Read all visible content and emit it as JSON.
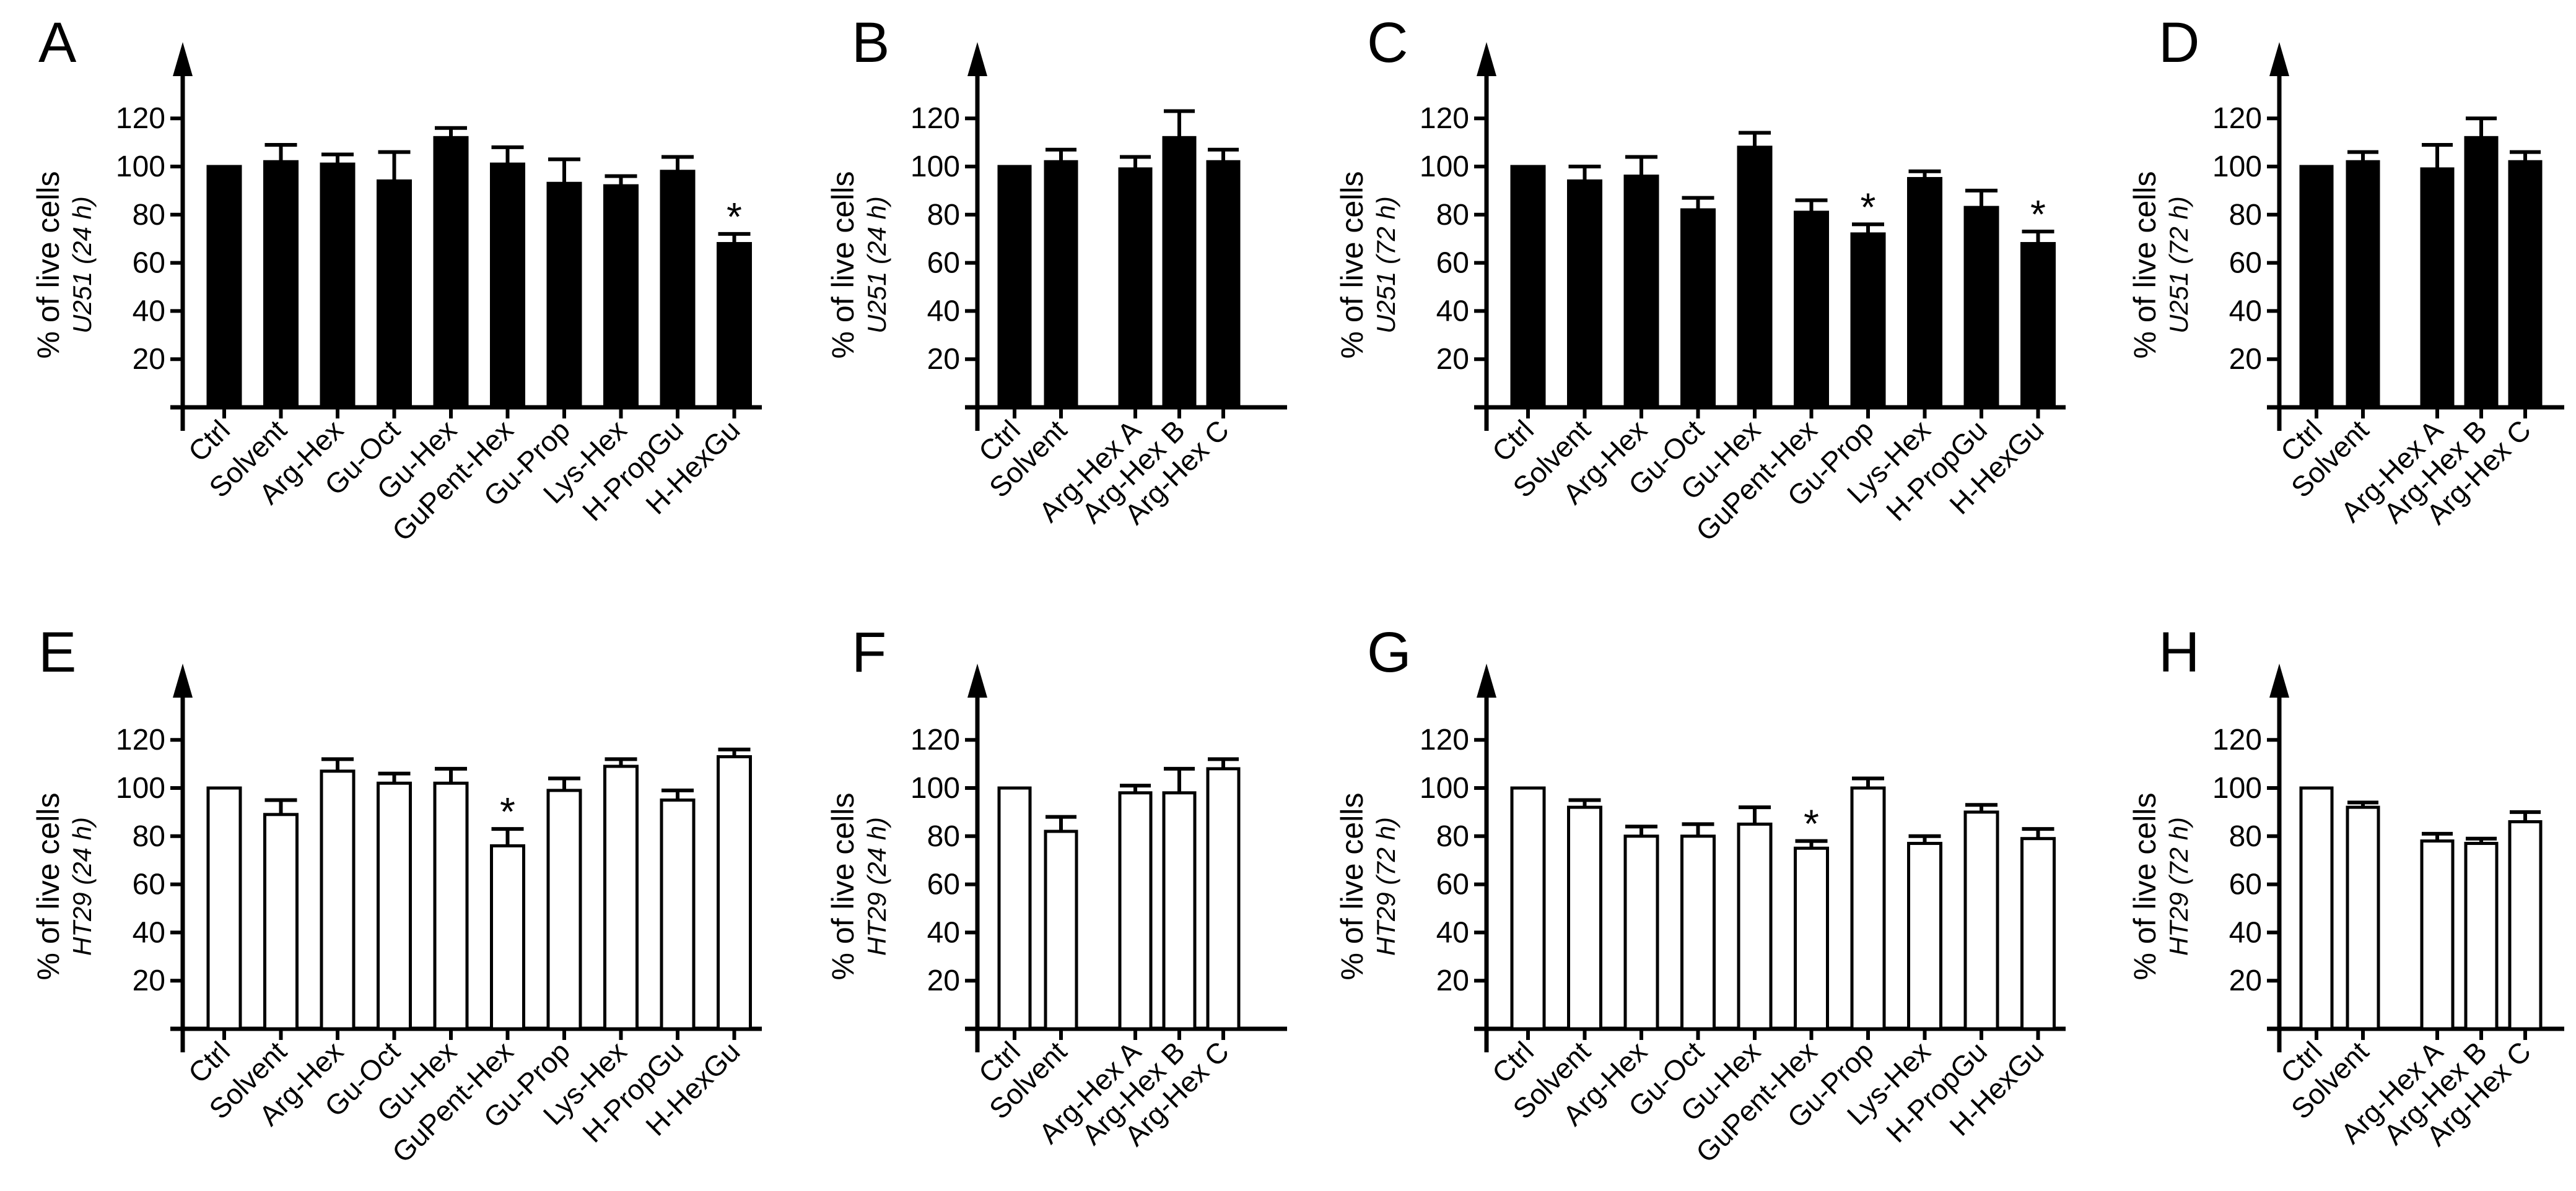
{
  "figure": {
    "ylabel": "% of live cells"
  },
  "chart_data": [
    {
      "panel": "A",
      "type": "bar",
      "cell_line": "U251",
      "time": "(24 h)",
      "fill": "#000000",
      "categories": [
        "Ctrl",
        "Solvent",
        "Arg-Hex",
        "Gu-Oct",
        "Gu-Hex",
        "GuPent-Hex",
        "Gu-Prop",
        "Lys-Hex",
        "H-PropGu",
        "H-HexGu"
      ],
      "values": [
        100,
        102,
        101,
        94,
        112,
        101,
        93,
        92,
        98,
        68
      ],
      "errors": [
        0,
        7,
        4,
        12,
        4,
        7,
        10,
        4,
        6,
        4
      ],
      "significant": [
        false,
        false,
        false,
        false,
        false,
        false,
        false,
        false,
        false,
        true
      ],
      "yticks": [
        20,
        40,
        60,
        80,
        100,
        120
      ],
      "ylim": [
        0,
        140
      ]
    },
    {
      "panel": "B",
      "type": "bar",
      "cell_line": "U251",
      "time": "(24 h)",
      "fill": "#000000",
      "categories": [
        "Ctrl",
        "Solvent",
        "Arg-Hex A",
        "Arg-Hex B",
        "Arg-Hex C"
      ],
      "values": [
        100,
        102,
        99,
        112,
        102
      ],
      "errors": [
        0,
        5,
        5,
        11,
        5
      ],
      "significant": [
        false,
        false,
        false,
        false,
        false
      ],
      "yticks": [
        20,
        40,
        60,
        80,
        100,
        120
      ],
      "ylim": [
        0,
        140
      ]
    },
    {
      "panel": "C",
      "type": "bar",
      "cell_line": "U251",
      "time": "(72 h)",
      "fill": "#000000",
      "categories": [
        "Ctrl",
        "Solvent",
        "Arg-Hex",
        "Gu-Oct",
        "Gu-Hex",
        "GuPent-Hex",
        "Gu-Prop",
        "Lys-Hex",
        "H-PropGu",
        "H-HexGu"
      ],
      "values": [
        100,
        94,
        96,
        82,
        108,
        81,
        72,
        95,
        83,
        68
      ],
      "errors": [
        0,
        6,
        8,
        5,
        6,
        5,
        4,
        3,
        7,
        5
      ],
      "significant": [
        false,
        false,
        false,
        false,
        false,
        false,
        true,
        false,
        false,
        true
      ],
      "yticks": [
        20,
        40,
        60,
        80,
        100,
        120
      ],
      "ylim": [
        0,
        140
      ]
    },
    {
      "panel": "D",
      "type": "bar",
      "cell_line": "U251",
      "time": "(72 h)",
      "fill": "#000000",
      "categories": [
        "Ctrl",
        "Solvent",
        "Arg-Hex A",
        "Arg-Hex B",
        "Arg-Hex C"
      ],
      "values": [
        100,
        102,
        99,
        112,
        102
      ],
      "errors": [
        0,
        4,
        10,
        8,
        4
      ],
      "significant": [
        false,
        false,
        false,
        false,
        false
      ],
      "yticks": [
        20,
        40,
        60,
        80,
        100,
        120
      ],
      "ylim": [
        0,
        140
      ]
    },
    {
      "panel": "E",
      "type": "bar",
      "cell_line": "HT29",
      "time": "(24 h)",
      "fill": "#ffffff",
      "categories": [
        "Ctrl",
        "Solvent",
        "Arg-Hex",
        "Gu-Oct",
        "Gu-Hex",
        "GuPent-Hex",
        "Gu-Prop",
        "Lys-Hex",
        "H-PropGu",
        "H-HexGu"
      ],
      "values": [
        100,
        89,
        107,
        102,
        102,
        76,
        99,
        109,
        95,
        113
      ],
      "errors": [
        0,
        6,
        5,
        4,
        6,
        7,
        5,
        3,
        4,
        3
      ],
      "significant": [
        false,
        false,
        false,
        false,
        false,
        true,
        false,
        false,
        false,
        false
      ],
      "yticks": [
        20,
        40,
        60,
        80,
        100,
        120
      ],
      "ylim": [
        0,
        140
      ]
    },
    {
      "panel": "F",
      "type": "bar",
      "cell_line": "HT29",
      "time": "(24 h)",
      "fill": "#ffffff",
      "categories": [
        "Ctrl",
        "Solvent",
        "Arg-Hex A",
        "Arg-Hex B",
        "Arg-Hex C"
      ],
      "values": [
        100,
        82,
        98,
        98,
        108
      ],
      "errors": [
        0,
        6,
        3,
        10,
        4
      ],
      "significant": [
        false,
        false,
        false,
        false,
        false
      ],
      "yticks": [
        20,
        40,
        60,
        80,
        100,
        120
      ],
      "ylim": [
        0,
        140
      ]
    },
    {
      "panel": "G",
      "type": "bar",
      "cell_line": "HT29",
      "time": "(72 h)",
      "fill": "#ffffff",
      "categories": [
        "Ctrl",
        "Solvent",
        "Arg-Hex",
        "Gu-Oct",
        "Gu-Hex",
        "GuPent-Hex",
        "Gu-Prop",
        "Lys-Hex",
        "H-PropGu",
        "H-HexGu"
      ],
      "values": [
        100,
        92,
        80,
        80,
        85,
        75,
        100,
        77,
        90,
        79
      ],
      "errors": [
        0,
        3,
        4,
        5,
        7,
        3,
        4,
        3,
        3,
        4
      ],
      "significant": [
        false,
        false,
        false,
        false,
        false,
        true,
        false,
        false,
        false,
        false
      ],
      "yticks": [
        20,
        40,
        60,
        80,
        100,
        120
      ],
      "ylim": [
        0,
        140
      ]
    },
    {
      "panel": "H",
      "type": "bar",
      "cell_line": "HT29",
      "time": "(72 h)",
      "fill": "#ffffff",
      "categories": [
        "Ctrl",
        "Solvent",
        "Arg-Hex A",
        "Arg-Hex B",
        "Arg-Hex C"
      ],
      "values": [
        100,
        92,
        78,
        77,
        86
      ],
      "errors": [
        0,
        2,
        3,
        2,
        4
      ],
      "significant": [
        false,
        false,
        false,
        false,
        false
      ],
      "yticks": [
        20,
        40,
        60,
        80,
        100,
        120
      ],
      "ylim": [
        0,
        140
      ]
    }
  ]
}
